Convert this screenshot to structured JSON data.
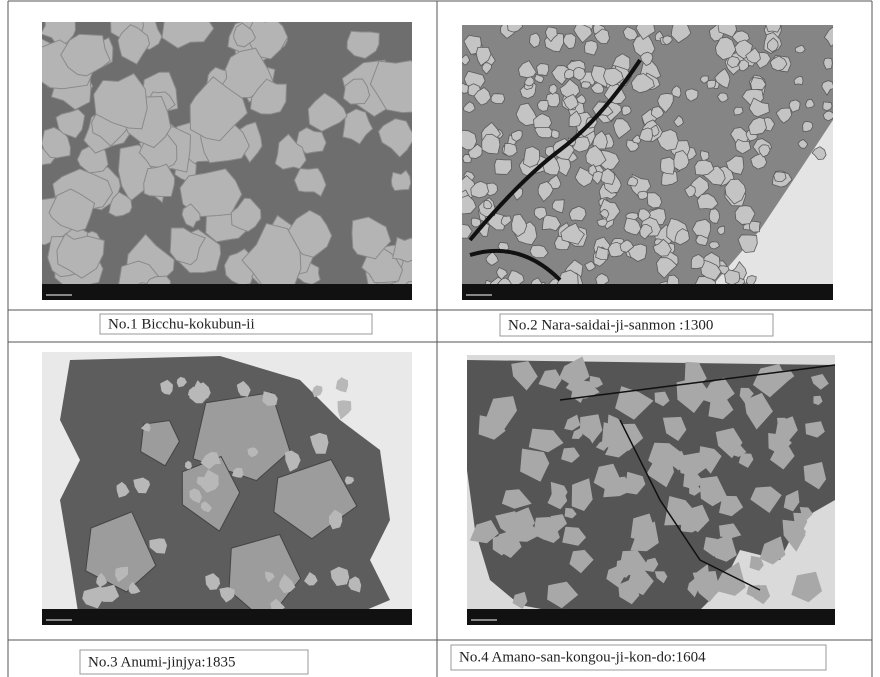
{
  "figures": [
    {
      "caption": "No.1 Bicchu-kokubun-ii"
    },
    {
      "caption": "No.2 Nara-saidai-ji-sanmon :1300"
    },
    {
      "caption": "No.3 Anumi-jinjya:1835"
    },
    {
      "caption": "No.4 Amano-san-kongou-ji-kon-do:1604"
    }
  ]
}
